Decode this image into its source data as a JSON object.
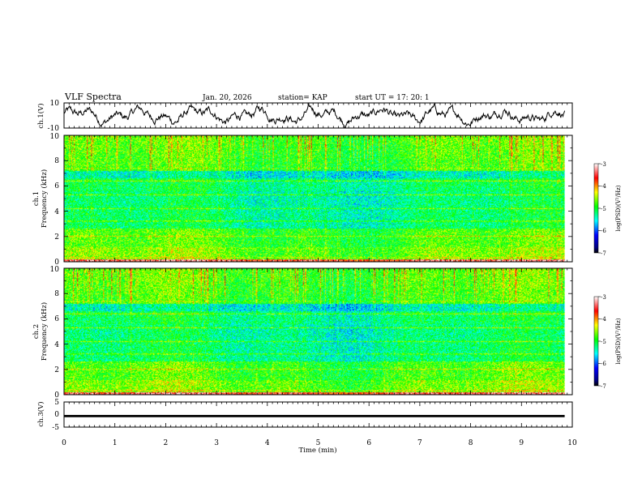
{
  "header": {
    "title": "VLF Spectra",
    "date": "Jan. 20, 2026",
    "station": "station= KAP",
    "start_time": "start  UT =   17: 20: 1"
  },
  "chart_data": [
    {
      "type": "line",
      "panel": "ch1-waveform",
      "ylabel": "ch.1(V)",
      "ylim": [
        -10,
        10
      ],
      "yticks": [
        "10",
        "-10"
      ],
      "xlim": [
        0,
        10
      ],
      "series": [
        {
          "name": "ch.1",
          "x_range_min": [
            0,
            9.85
          ],
          "mean_v": 0,
          "amplitude_v": 9,
          "color": "#000000"
        }
      ]
    },
    {
      "type": "heatmap",
      "panel": "ch1-spectrogram",
      "ylabel_line1": "ch.1",
      "ylabel_line2": "Frequency (kHz)",
      "ylim": [
        0,
        10
      ],
      "yticks": [
        "0",
        "2",
        "4",
        "6",
        "8",
        "10"
      ],
      "xlim": [
        0,
        9.85
      ],
      "colorbar": {
        "label": "log(PSD)(V²/Hz)",
        "range": [
          -7,
          -3
        ],
        "ticks": [
          "-3",
          "-4",
          "-5",
          "-6",
          "-7"
        ]
      },
      "bands_khz": [
        {
          "f": 0.3,
          "level": -4.3
        },
        {
          "f": 1.0,
          "level": -4.6
        },
        {
          "f": 2.0,
          "level": -4.4
        },
        {
          "f": 3.2,
          "level": -4.6
        },
        {
          "f": 4.2,
          "level": -4.7
        },
        {
          "f": 5.3,
          "level": -4.6
        },
        {
          "f": 6.4,
          "level": -4.5
        },
        {
          "f": 7.4,
          "level": -4.6
        }
      ]
    },
    {
      "type": "heatmap",
      "panel": "ch2-spectrogram",
      "ylabel_line1": "ch.2",
      "ylabel_line2": "Frequency (kHz)",
      "ylim": [
        0,
        10
      ],
      "yticks": [
        "0",
        "2",
        "4",
        "6",
        "8",
        "10"
      ],
      "xlim": [
        0,
        9.85
      ],
      "colorbar": {
        "label": "log(PSD)(V²/Hz)",
        "range": [
          -7,
          -3
        ],
        "ticks": [
          "-3",
          "-4",
          "-5",
          "-6",
          "-7"
        ]
      },
      "bands_khz": [
        {
          "f": 0.3,
          "level": -4.3
        },
        {
          "f": 1.0,
          "level": -4.6
        },
        {
          "f": 2.0,
          "level": -4.4
        },
        {
          "f": 3.2,
          "level": -4.6
        },
        {
          "f": 4.2,
          "level": -4.7
        },
        {
          "f": 5.3,
          "level": -4.6
        },
        {
          "f": 6.4,
          "level": -4.5
        },
        {
          "f": 7.4,
          "level": -4.6
        }
      ]
    },
    {
      "type": "line",
      "panel": "ch3-waveform",
      "ylabel": "ch.3(V)",
      "ylim": [
        -5,
        5
      ],
      "yticks": [
        "5",
        "0",
        "-5"
      ],
      "xlim": [
        0,
        10
      ],
      "series": [
        {
          "name": "ch.3",
          "x_range_min": [
            0,
            9.85
          ],
          "mean_v": -0.6,
          "band_half_width_v": 0.45,
          "color": "#000000"
        }
      ]
    }
  ],
  "xaxis": {
    "label": "Time  (min)",
    "ticks": [
      "0",
      "1",
      "2",
      "3",
      "4",
      "5",
      "6",
      "7",
      "8",
      "9",
      "10"
    ],
    "range": [
      0,
      10
    ]
  }
}
